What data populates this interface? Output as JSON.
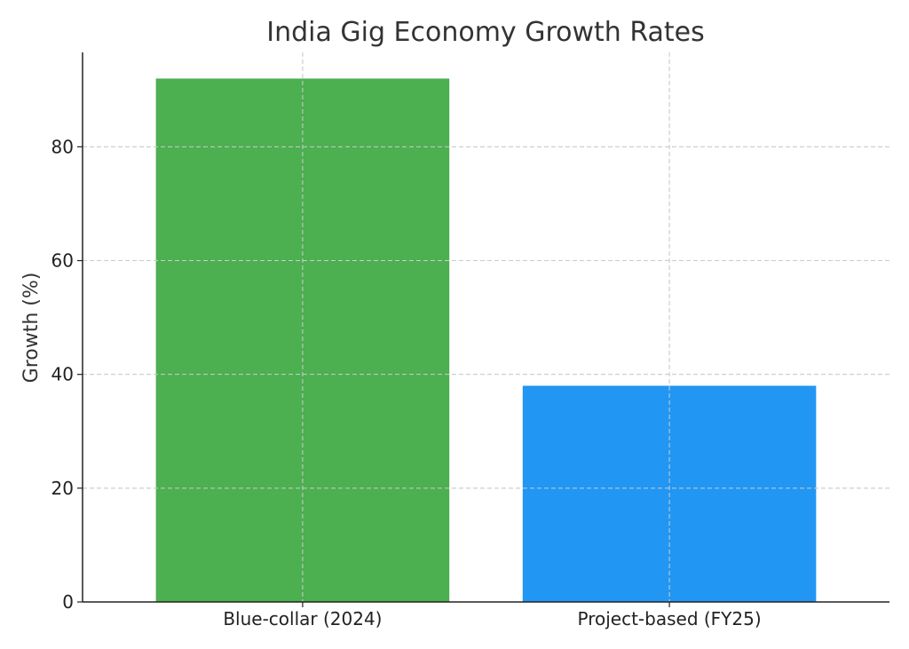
{
  "chart_data": {
    "type": "bar",
    "title": "India Gig Economy Growth Rates",
    "xlabel": "",
    "ylabel": "Growth (%)",
    "categories": [
      "Blue-collar (2024)",
      "Project-based (FY25)"
    ],
    "values": [
      92,
      38
    ],
    "colors": [
      "#4caf50",
      "#2196f3"
    ],
    "ylim": [
      0,
      96.6
    ],
    "yticks": [
      0,
      20,
      40,
      60,
      80
    ],
    "grid": true
  }
}
